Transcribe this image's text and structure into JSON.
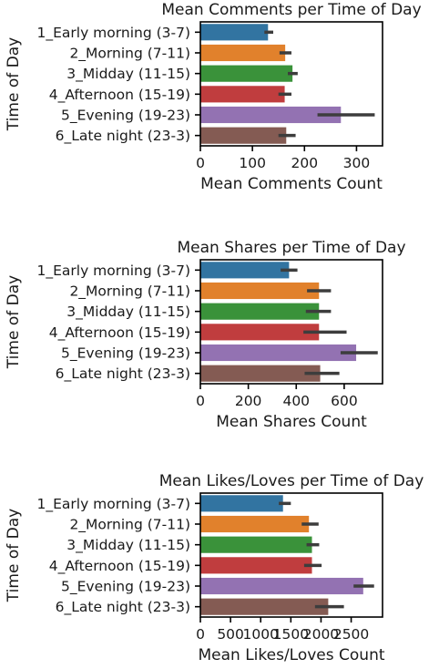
{
  "chart_data": [
    {
      "type": "bar",
      "orientation": "horizontal",
      "title": "Mean Comments per Time of Day",
      "xlabel": "Mean Comments Count",
      "ylabel": "Time of Day",
      "categories": [
        "1_Early morning (3-7)",
        "2_Morning (7-11)",
        "3_Midday (11-15)",
        "4_Afternoon (15-19)",
        "5_Evening (19-23)",
        "6_Late night (23-3)"
      ],
      "values": [
        130,
        163,
        177,
        162,
        270,
        165
      ],
      "error_low": [
        123,
        152,
        168,
        150,
        225,
        150
      ],
      "error_high": [
        140,
        175,
        187,
        175,
        335,
        183
      ],
      "xlim": [
        0,
        350
      ],
      "xticks": [
        0,
        100,
        200,
        300
      ],
      "colors": [
        "#3274a1",
        "#e1812c",
        "#3a923a",
        "#c03d3e",
        "#9372b2",
        "#845b53"
      ],
      "grid": false,
      "legend": "none"
    },
    {
      "type": "bar",
      "orientation": "horizontal",
      "title": "Mean Shares per Time of Day",
      "xlabel": "Mean Shares Count",
      "ylabel": "Time of Day",
      "categories": [
        "1_Early morning (3-7)",
        "2_Morning (7-11)",
        "3_Midday (11-15)",
        "4_Afternoon (15-19)",
        "5_Evening (19-23)",
        "6_Late night (23-3)"
      ],
      "values": [
        370,
        495,
        495,
        495,
        650,
        500
      ],
      "error_low": [
        335,
        445,
        440,
        430,
        585,
        435
      ],
      "error_high": [
        405,
        545,
        545,
        610,
        740,
        580
      ],
      "xlim": [
        0,
        760
      ],
      "xticks": [
        0,
        200,
        400,
        600
      ],
      "colors": [
        "#3274a1",
        "#e1812c",
        "#3a923a",
        "#c03d3e",
        "#9372b2",
        "#845b53"
      ],
      "grid": false,
      "legend": "none"
    },
    {
      "type": "bar",
      "orientation": "horizontal",
      "title": "Mean Likes/Loves per Time of Day",
      "xlabel": "Mean Likes/Loves Count",
      "ylabel": "Time of Day",
      "categories": [
        "1_Early morning (3-7)",
        "2_Morning (7-11)",
        "3_Midday (11-15)",
        "4_Afternoon (15-19)",
        "5_Evening (19-23)",
        "6_Late night (23-3)"
      ],
      "values": [
        1370,
        1800,
        1850,
        1850,
        2700,
        2120
      ],
      "error_low": [
        1300,
        1680,
        1760,
        1720,
        2540,
        1900
      ],
      "error_high": [
        1500,
        1960,
        1970,
        2010,
        2880,
        2380
      ],
      "xlim": [
        0,
        3020
      ],
      "xticks": [
        0,
        500,
        1000,
        1500,
        2000,
        2500
      ],
      "colors": [
        "#3274a1",
        "#e1812c",
        "#3a923a",
        "#c03d3e",
        "#9372b2",
        "#845b53"
      ],
      "grid": false,
      "legend": "none"
    }
  ]
}
